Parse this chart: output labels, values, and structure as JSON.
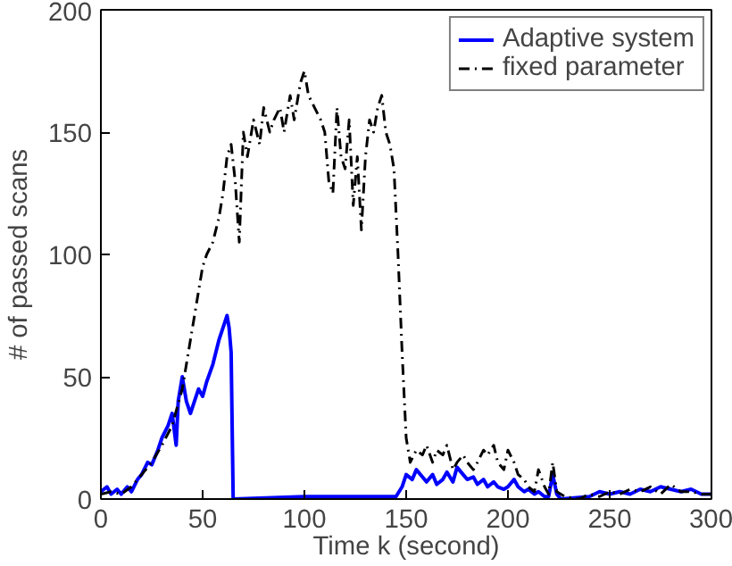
{
  "chart_data": {
    "type": "line",
    "xlabel": "Time k (second)",
    "ylabel": "# of passed scans",
    "xlim": [
      0,
      300
    ],
    "ylim": [
      0,
      200
    ],
    "xticks": [
      0,
      50,
      100,
      150,
      200,
      250,
      300
    ],
    "yticks": [
      0,
      50,
      100,
      150,
      200
    ],
    "grid": false,
    "legend": "top right",
    "series": [
      {
        "name": "Adaptive system",
        "color": "#0000ff",
        "line_style": "solid",
        "x": [
          0,
          3,
          5,
          8,
          10,
          13,
          15,
          18,
          20,
          23,
          25,
          28,
          30,
          33,
          35,
          37,
          38,
          40,
          42,
          44,
          46,
          48,
          50,
          52,
          55,
          58,
          60,
          62,
          63,
          64,
          65,
          100,
          140,
          145,
          148,
          150,
          153,
          155,
          158,
          160,
          163,
          165,
          168,
          170,
          173,
          175,
          178,
          180,
          183,
          185,
          188,
          190,
          193,
          195,
          198,
          200,
          203,
          205,
          208,
          210,
          213,
          215,
          218,
          220,
          222,
          224,
          226,
          240,
          245,
          250,
          255,
          260,
          265,
          270,
          275,
          280,
          285,
          290,
          295,
          300
        ],
        "values": [
          3,
          5,
          2,
          4,
          2,
          5,
          3,
          8,
          10,
          15,
          14,
          20,
          25,
          30,
          35,
          22,
          40,
          50,
          40,
          35,
          40,
          45,
          42,
          48,
          55,
          65,
          70,
          75,
          70,
          60,
          0,
          1,
          1,
          1,
          5,
          10,
          8,
          12,
          9,
          7,
          10,
          6,
          8,
          11,
          7,
          13,
          10,
          8,
          9,
          6,
          8,
          5,
          7,
          5,
          4,
          5,
          8,
          5,
          3,
          4,
          2,
          3,
          1,
          1,
          10,
          2,
          0,
          1,
          3,
          2,
          3,
          2,
          4,
          3,
          5,
          4,
          3,
          4,
          2,
          2
        ]
      },
      {
        "name": "fixed parameter",
        "color": "#000000",
        "line_style": "dashdot",
        "x": [
          0,
          5,
          10,
          15,
          20,
          25,
          30,
          35,
          40,
          43,
          45,
          48,
          50,
          52,
          55,
          58,
          60,
          62,
          64,
          66,
          68,
          70,
          72,
          75,
          78,
          80,
          83,
          85,
          88,
          90,
          93,
          95,
          98,
          100,
          102,
          105,
          108,
          110,
          112,
          114,
          116,
          118,
          120,
          122,
          124,
          126,
          128,
          130,
          132,
          134,
          136,
          138,
          140,
          142,
          144,
          146,
          148,
          150,
          152,
          155,
          158,
          160,
          163,
          165,
          168,
          170,
          173,
          175,
          178,
          180,
          183,
          185,
          188,
          190,
          193,
          195,
          198,
          200,
          203,
          205,
          208,
          210,
          213,
          215,
          218,
          220,
          222,
          224,
          228,
          235,
          240,
          245,
          250,
          255,
          260,
          265,
          270,
          275,
          280,
          285,
          290,
          295,
          300
        ],
        "values": [
          2,
          3,
          2,
          5,
          10,
          15,
          22,
          30,
          45,
          60,
          70,
          85,
          95,
          100,
          105,
          115,
          125,
          140,
          145,
          130,
          105,
          150,
          140,
          155,
          145,
          160,
          150,
          155,
          160,
          150,
          165,
          155,
          170,
          175,
          165,
          160,
          155,
          150,
          130,
          125,
          160,
          140,
          135,
          155,
          120,
          140,
          110,
          140,
          155,
          150,
          160,
          165,
          150,
          145,
          135,
          100,
          60,
          25,
          15,
          20,
          18,
          22,
          15,
          20,
          18,
          22,
          12,
          15,
          18,
          15,
          12,
          15,
          20,
          18,
          22,
          15,
          12,
          20,
          15,
          10,
          8,
          5,
          3,
          12,
          5,
          2,
          15,
          3,
          1,
          0,
          2,
          1,
          3,
          2,
          4,
          3,
          5,
          2,
          6,
          3,
          3,
          2,
          2
        ]
      }
    ]
  }
}
